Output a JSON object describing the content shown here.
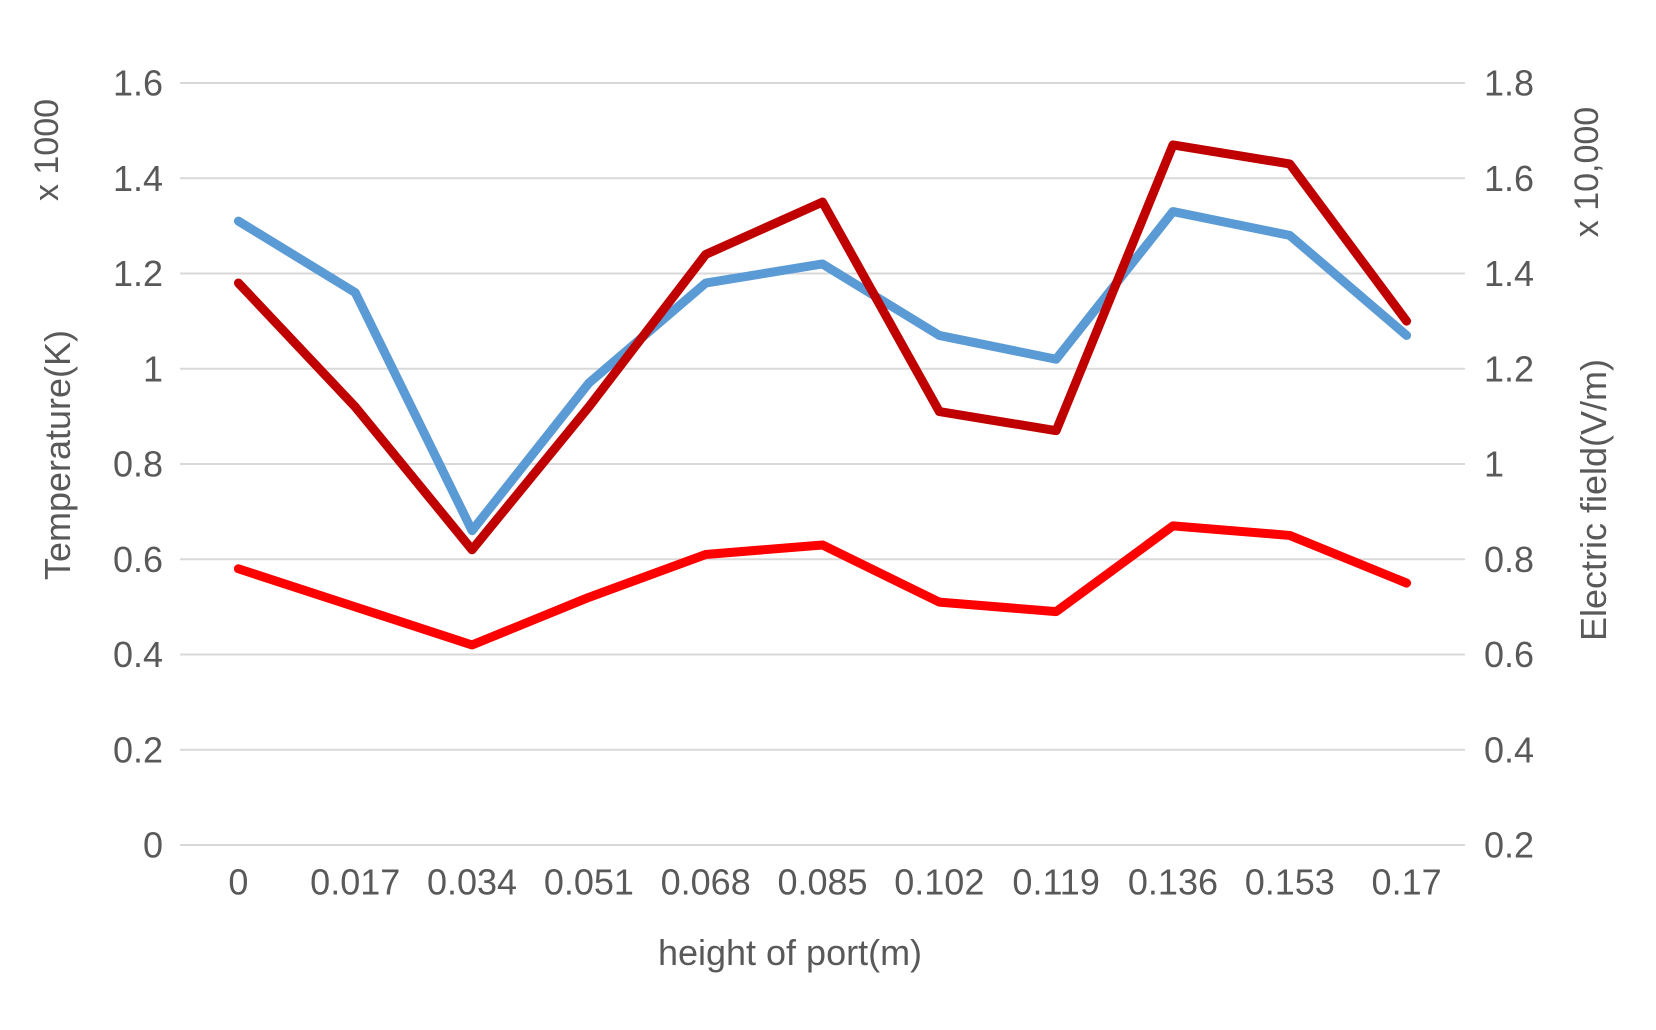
{
  "chart_data": {
    "type": "line",
    "title": "",
    "xlabel": "height of port(m)",
    "categories": [
      "0",
      "0.017",
      "0.034",
      "0.051",
      "0.068",
      "0.085",
      "0.102",
      "0.119",
      "0.136",
      "0.153",
      "0.17"
    ],
    "left_axis": {
      "label": "Temperature(K)",
      "scale_label": "x 1000",
      "ticks_top_to_bottom": [
        "1.6",
        "1.4",
        "1.2",
        "1",
        "0.8",
        "0.6",
        "0.4",
        "0.2",
        "0"
      ],
      "range": [
        0,
        1.6
      ]
    },
    "right_axis": {
      "label": "Electric field(V/m)",
      "scale_label": "x 10,000",
      "ticks_top_to_bottom": [
        "1.8",
        "1.6",
        "1.4",
        "1.2",
        "1",
        "0.8",
        "0.6",
        "0.4",
        "0.2"
      ],
      "range": [
        0.2,
        1.8
      ]
    },
    "grid": true,
    "legend": false,
    "series": [
      {
        "name": "blue-line",
        "color": "#5B9BD5",
        "values_on_left_scale": [
          1.31,
          1.16,
          0.66,
          0.97,
          1.18,
          1.22,
          1.07,
          1.02,
          1.33,
          1.28,
          1.07
        ]
      },
      {
        "name": "dark-red-line",
        "color": "#C00000",
        "values_on_left_scale": [
          1.18,
          0.92,
          0.62,
          0.92,
          1.24,
          1.35,
          0.91,
          0.87,
          1.47,
          1.43,
          1.1
        ]
      },
      {
        "name": "bright-red-line",
        "color": "#FF0000",
        "values_on_left_scale": [
          0.58,
          0.5,
          0.42,
          0.52,
          0.61,
          0.63,
          0.51,
          0.49,
          0.67,
          0.65,
          0.55
        ]
      }
    ]
  },
  "colors": {
    "gridline": "#D9D9D9",
    "text": "#595959",
    "background": "#FFFFFF"
  }
}
